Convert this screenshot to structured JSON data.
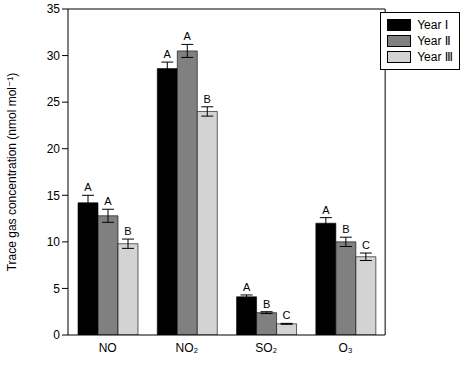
{
  "chart_data": {
    "type": "bar",
    "categories": [
      "NO",
      "NO₂",
      "SO₂",
      "O₃"
    ],
    "y_label": "Trace gas concentration (nmol mol⁻¹)",
    "ylim": [
      0,
      35
    ],
    "yticks": [
      0,
      5,
      10,
      15,
      20,
      25,
      30,
      35
    ],
    "grid": false,
    "legend": "top-right",
    "series": [
      {
        "name": "Year Ⅰ",
        "color": "#000000",
        "values": [
          14.2,
          28.6,
          4.1,
          12.0
        ],
        "errors": [
          0.8,
          0.7,
          0.2,
          0.6
        ],
        "letters": [
          "A",
          "A",
          "A",
          "A"
        ]
      },
      {
        "name": "Year Ⅱ",
        "color": "#808080",
        "values": [
          12.8,
          30.5,
          2.4,
          10.0
        ],
        "errors": [
          0.7,
          0.7,
          0.1,
          0.5
        ],
        "letters": [
          "A",
          "A",
          "B",
          "B"
        ]
      },
      {
        "name": "Year Ⅲ",
        "color": "#d3d3d3",
        "values": [
          9.8,
          24.0,
          1.2,
          8.4
        ],
        "errors": [
          0.5,
          0.5,
          0.05,
          0.4
        ],
        "letters": [
          "B",
          "B",
          "C",
          "C"
        ]
      }
    ]
  }
}
